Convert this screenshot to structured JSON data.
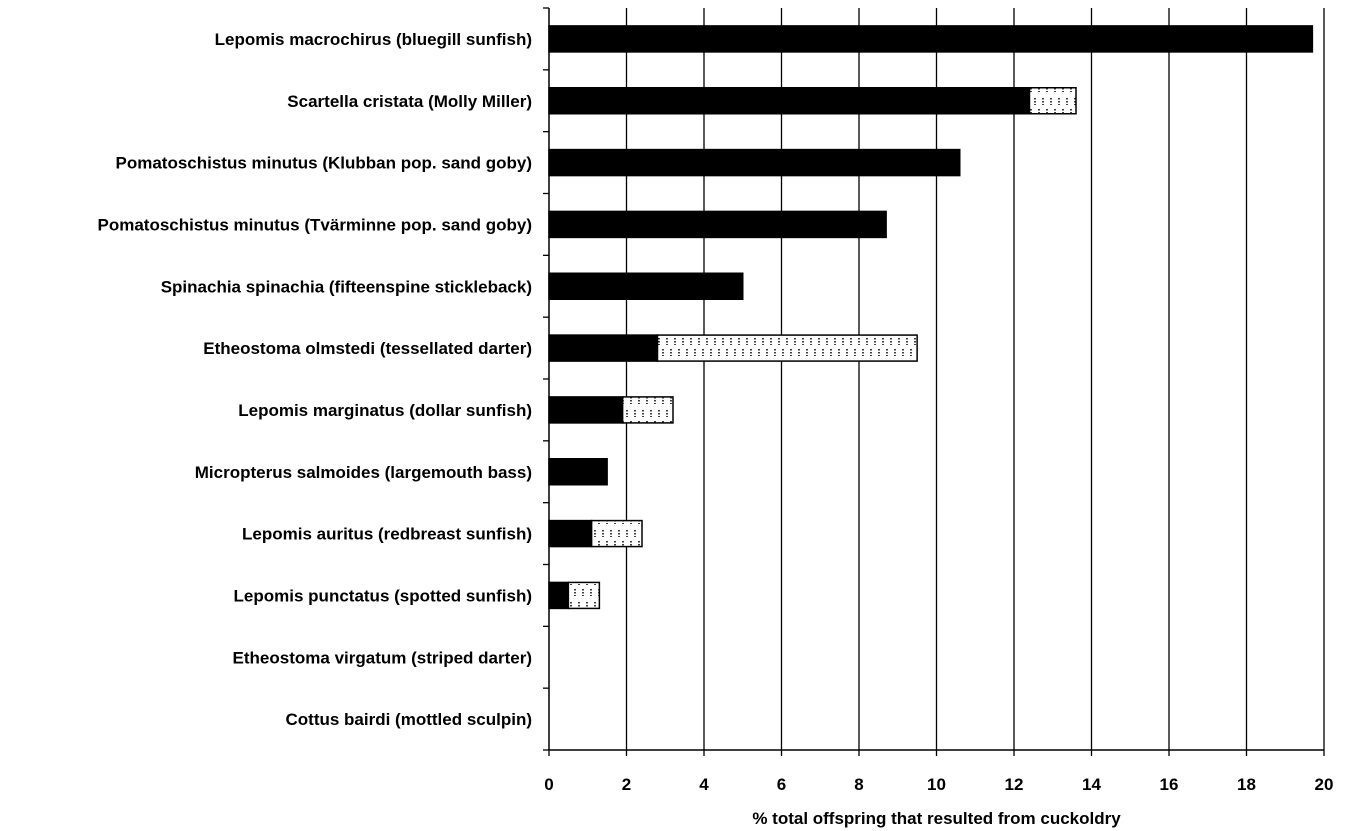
{
  "chart_data": {
    "type": "bar",
    "orientation": "horizontal",
    "stacked": true,
    "categories": [
      "Lepomis macrochirus (bluegill sunfish)",
      "Scartella cristata (Molly Miller)",
      "Pomatoschistus minutus (Klubban pop. sand goby)",
      "Pomatoschistus minutus (Tvärminne pop. sand goby)",
      "Spinachia spinachia (fifteenspine stickleback)",
      "Etheostoma olmstedi (tessellated darter)",
      "Lepomis marginatus (dollar sunfish)",
      "Micropterus salmoides (largemouth bass)",
      "Lepomis auritus (redbreast sunfish)",
      "Lepomis punctatus (spotted sunfish)",
      "Etheostoma virgatum (striped darter)",
      "Cottus bairdi (mottled sculpin)"
    ],
    "series": [
      {
        "values": [
          19.7,
          12.4,
          10.6,
          8.7,
          5.0,
          2.8,
          1.9,
          1.5,
          1.1,
          0.5,
          0,
          0
        ],
        "color": "#000000",
        "pattern": "solid"
      },
      {
        "values": [
          0,
          1.2,
          0,
          0,
          0,
          6.7,
          1.3,
          0,
          1.3,
          0.8,
          0,
          0
        ],
        "color": "#ffffff",
        "pattern": "dotted-brick"
      }
    ],
    "xlabel": "% total offspring that resulted from cuckoldry",
    "xlim": [
      0,
      20
    ],
    "xticks": [
      "0",
      "2",
      "4",
      "6",
      "8",
      "10",
      "12",
      "14",
      "16",
      "18",
      "20"
    ],
    "grid": "vertical",
    "legend": "none"
  }
}
